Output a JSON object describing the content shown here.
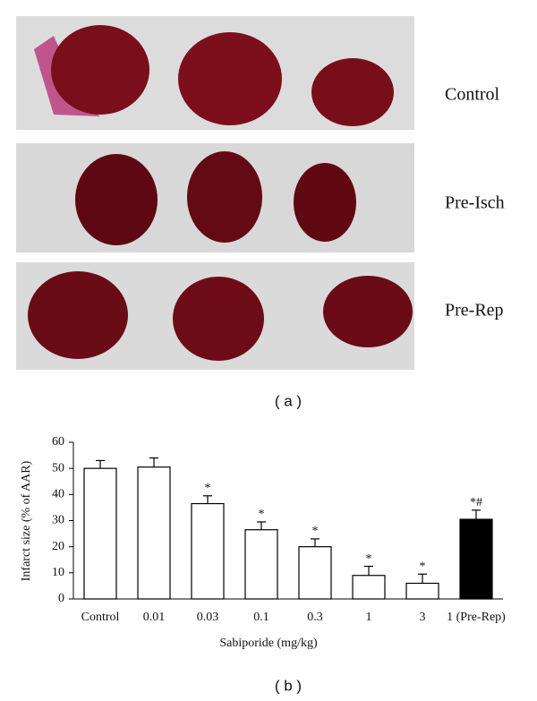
{
  "figure": {
    "row_labels": [
      "Control",
      "Pre-Isch",
      "Pre-Rep"
    ],
    "panel_a_label": "( a )",
    "panel_b_label": "( b )"
  },
  "chart_data": {
    "type": "bar",
    "x_label": "Sabiporide (mg/kg)",
    "y_label": "Infarct size (% of AAR)",
    "categories": [
      "Control",
      "0.01",
      "0.03",
      "0.1",
      "0.3",
      "1",
      "3",
      "1 (Pre-Rep)"
    ],
    "values": [
      50,
      50.5,
      36.5,
      26.5,
      20,
      9,
      6,
      30.5
    ],
    "errors": [
      3,
      3.5,
      3,
      3,
      3,
      3.5,
      3.5,
      3.5
    ],
    "annotations": [
      null,
      null,
      "*",
      "*",
      "*",
      "*",
      "*",
      "*#"
    ],
    "colors": [
      "#ffffff",
      "#ffffff",
      "#ffffff",
      "#ffffff",
      "#ffffff",
      "#ffffff",
      "#ffffff",
      "#000000"
    ],
    "ylim": [
      0,
      60
    ],
    "yticks": [
      0,
      10,
      20,
      30,
      40,
      50,
      60
    ]
  }
}
